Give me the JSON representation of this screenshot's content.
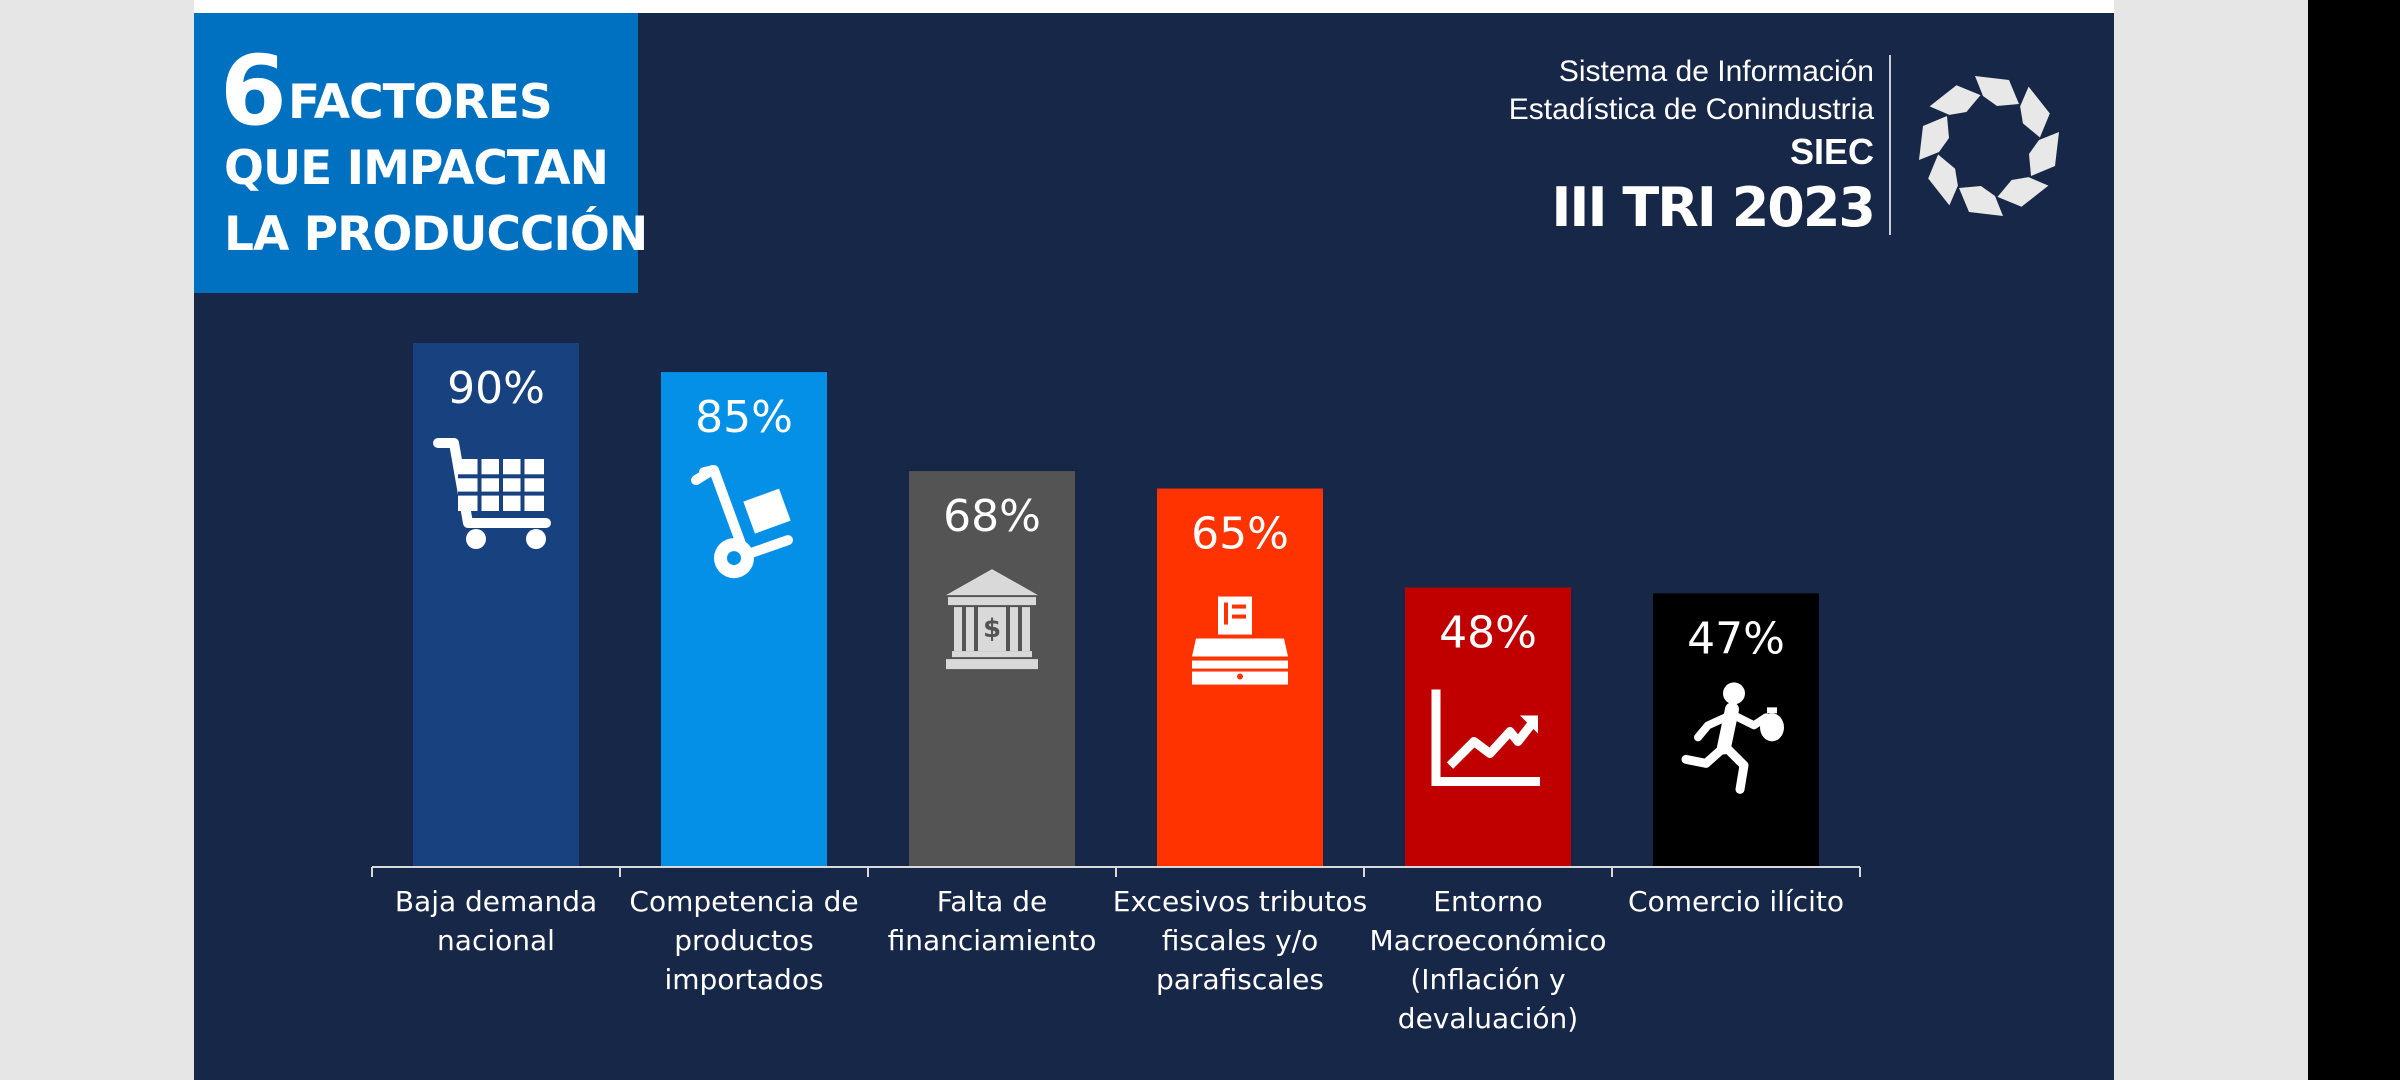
{
  "title": {
    "number": "6",
    "line1": "FACTORES",
    "line2": "QUE IMPACTAN",
    "line3": "LA PRODUCCIÓN"
  },
  "org": {
    "line1": "Sistema de Información",
    "line2": "Estadística de Conindustria",
    "acronym": "SIEC",
    "period": "III TRI 2023"
  },
  "chart_data": {
    "type": "bar",
    "categories": [
      [
        "Baja demanda",
        "nacional"
      ],
      [
        "Competencia de",
        "productos",
        "importados"
      ],
      [
        "Falta de",
        "financiamiento"
      ],
      [
        "Excesivos tributos",
        "fiscales y/o",
        "parafiscales"
      ],
      [
        "Entorno",
        "Macroeconómico",
        "(Inflación y",
        "devaluación)"
      ],
      [
        "Comercio ilícito"
      ]
    ],
    "values": [
      90,
      85,
      68,
      65,
      48,
      47
    ],
    "value_labels": [
      "90%",
      "85%",
      "68%",
      "65%",
      "48%",
      "47%"
    ],
    "colors": [
      "#17417f",
      "#0590e8",
      "#545454",
      "#ff3300",
      "#c00000",
      "#000000"
    ],
    "icons": [
      "shopping-cart-icon",
      "hand-truck-icon",
      "bank-icon",
      "cash-register-icon",
      "chart-growth-icon",
      "thief-running-icon"
    ],
    "ylim": [
      0,
      100
    ],
    "grid": false,
    "legend": "none"
  }
}
